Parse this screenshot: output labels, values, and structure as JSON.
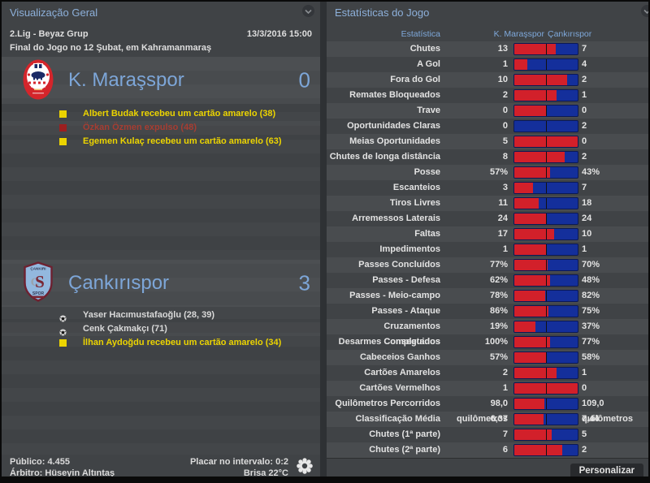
{
  "left_panel": {
    "title": "Visualização Geral",
    "competition": "2.Lig - Beyaz Grup",
    "kickoff": "13/3/2016 15:00",
    "result_line": "Final do Jogo no 12 Şubat, em Kahramanmaraş",
    "home_team": {
      "name": "K. Maraşspor",
      "score": "0",
      "events": [
        {
          "icon": "yellow-card-icon",
          "type": "yellow",
          "text": "Albert Budak recebeu um cartão amarelo (38)"
        },
        {
          "icon": "red-card-icon",
          "type": "red",
          "text": "Özkan Özmen expulso (48)"
        },
        {
          "icon": "yellow-card-icon",
          "type": "yellow",
          "text": "Egemen Kulaç recebeu um cartão amarelo (63)"
        }
      ]
    },
    "away_team": {
      "name": "Çankırıspor",
      "score": "3",
      "events": [
        {
          "icon": "goal-ball-icon",
          "type": "goal",
          "text": "Yaser Hacımustafaoğlu (28, 39)"
        },
        {
          "icon": "goal-ball-icon",
          "type": "goal",
          "text": "Cenk Çakmakçı (71)"
        },
        {
          "icon": "yellow-card-icon",
          "type": "yellow",
          "text": "İlhan Aydoğdu recebeu um cartão amarelo (34)"
        }
      ]
    },
    "footer": {
      "attendance": "Público: 4.455",
      "referee": "Árbitro: Hüseyin Altıntaş",
      "halftime": "Placar no intervalo: 0:2",
      "weather": "Brisa 22°C"
    }
  },
  "right_panel": {
    "title": "Estatísticas do Jogo",
    "columns": {
      "stat": "Estatística",
      "home": "K. Maraşspor",
      "away": "Çankırıspor"
    },
    "customize_button": "Personalizar"
  },
  "colors": {
    "home_bar": "#d2202a",
    "away_bar": "#142f9b",
    "accent_blue": "#7da6d8",
    "yellow_event": "#ecd400",
    "red_event": "#a63d32"
  },
  "chart_data": {
    "type": "table",
    "title": "Estatísticas do Jogo",
    "columns": [
      "Estatística",
      "K. Maraşspor",
      "Çankırıspor"
    ],
    "rows": [
      {
        "label": "Chutes",
        "home": "13",
        "away": "7",
        "home_val": 13,
        "away_val": 7
      },
      {
        "label": "A Gol",
        "home": "1",
        "away": "4",
        "home_val": 1,
        "away_val": 4
      },
      {
        "label": "Fora do Gol",
        "home": "10",
        "away": "2",
        "home_val": 10,
        "away_val": 2
      },
      {
        "label": "Remates Bloqueados",
        "home": "2",
        "away": "1",
        "home_val": 2,
        "away_val": 1
      },
      {
        "label": "Trave",
        "home": "0",
        "away": "0",
        "home_val": 0,
        "away_val": 0
      },
      {
        "label": "Oportunidades Claras",
        "home": "0",
        "away": "2",
        "home_val": 0,
        "away_val": 2
      },
      {
        "label": "Meias Oportunidades",
        "home": "5",
        "away": "0",
        "home_val": 5,
        "away_val": 0
      },
      {
        "label": "Chutes de longa distância",
        "home": "8",
        "away": "2",
        "home_val": 8,
        "away_val": 2
      },
      {
        "label": "Posse",
        "home": "57%",
        "away": "43%",
        "home_val": 57,
        "away_val": 43
      },
      {
        "label": "Escanteios",
        "home": "3",
        "away": "7",
        "home_val": 3,
        "away_val": 7
      },
      {
        "label": "Tiros Livres",
        "home": "11",
        "away": "18",
        "home_val": 11,
        "away_val": 18
      },
      {
        "label": "Arremessos Laterais",
        "home": "24",
        "away": "24",
        "home_val": 24,
        "away_val": 24
      },
      {
        "label": "Faltas",
        "home": "17",
        "away": "10",
        "home_val": 17,
        "away_val": 10
      },
      {
        "label": "Impedimentos",
        "home": "1",
        "away": "1",
        "home_val": 1,
        "away_val": 1
      },
      {
        "label": "Passes Concluídos",
        "home": "77%",
        "away": "70%",
        "home_val": 77,
        "away_val": 70
      },
      {
        "label": "Passes - Defesa",
        "home": "62%",
        "away": "48%",
        "home_val": 62,
        "away_val": 48
      },
      {
        "label": "Passes - Meio-campo",
        "home": "78%",
        "away": "82%",
        "home_val": 78,
        "away_val": 82
      },
      {
        "label": "Passes - Ataque",
        "home": "86%",
        "away": "75%",
        "home_val": 86,
        "away_val": 75
      },
      {
        "label": "Cruzamentos Completados",
        "home": "19%",
        "away": "37%",
        "home_val": 19,
        "away_val": 37
      },
      {
        "label": "Desarmes Conseguidos",
        "home": "100%",
        "away": "77%",
        "home_val": 100,
        "away_val": 77
      },
      {
        "label": "Cabeceios Ganhos",
        "home": "57%",
        "away": "58%",
        "home_val": 57,
        "away_val": 58
      },
      {
        "label": "Cartões Amarelos",
        "home": "2",
        "away": "1",
        "home_val": 2,
        "away_val": 1
      },
      {
        "label": "Cartões Vermelhos",
        "home": "1",
        "away": "0",
        "home_val": 1,
        "away_val": 0
      },
      {
        "label": "Quilômetros Percorridos",
        "home": "98,0 quilômetros",
        "away": "109,0 quilômetros",
        "home_val": 98,
        "away_val": 109
      },
      {
        "label": "Classificação Média",
        "home": "6,37",
        "away": "7,44",
        "home_val": 6.37,
        "away_val": 7.44
      },
      {
        "label": "Chutes (1ª parte)",
        "home": "7",
        "away": "5",
        "home_val": 7,
        "away_val": 5
      },
      {
        "label": "Chutes (2ª parte)",
        "home": "6",
        "away": "2",
        "home_val": 6,
        "away_val": 2
      }
    ]
  }
}
